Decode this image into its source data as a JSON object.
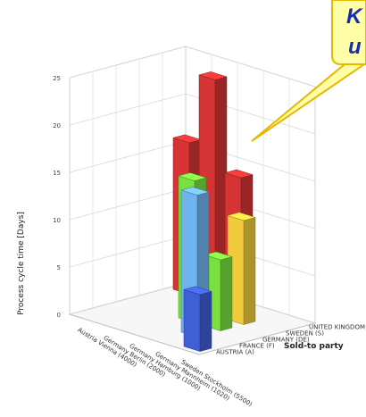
{
  "callout": {
    "line1": "K",
    "line2": "u",
    "fill": "#ffffa8",
    "stroke": "#e8b800",
    "text_color": "#1a2bb0"
  },
  "chart_data": {
    "type": "bar",
    "ylabel": "Process cycle time [Days]",
    "zlabel": "Sold-to party",
    "ylim": [
      0,
      25
    ],
    "yticks": [
      "0",
      "5",
      "10",
      "15",
      "20",
      "25"
    ],
    "categories": [
      "Austria Vienna (4000)",
      "Germany Berlin (2000)",
      "Germany Hamburg (1000)",
      "Germany Mannheim (1020)",
      "Sweden Stockholm (5500)"
    ],
    "series": [
      {
        "name": "AUSTRIA (A)",
        "color": "#3f5fd6",
        "values": [
          null,
          null,
          null,
          null,
          6
        ]
      },
      {
        "name": "FRANCE (F)",
        "color": "#6fb4ee",
        "values": [
          null,
          null,
          null,
          15,
          null
        ]
      },
      {
        "name": "GERMANY (DE)",
        "color": "#79e040",
        "values": [
          null,
          null,
          15,
          7.5,
          null
        ]
      },
      {
        "name": "SWEDEN (S)",
        "color": "#f0cc3c",
        "values": [
          null,
          null,
          null,
          11,
          null
        ]
      },
      {
        "name": "UNITED KINGDOM (UK)",
        "color": "#d63434",
        "values": [
          16,
          23.5,
          14,
          null,
          null
        ]
      }
    ],
    "grid": true
  }
}
